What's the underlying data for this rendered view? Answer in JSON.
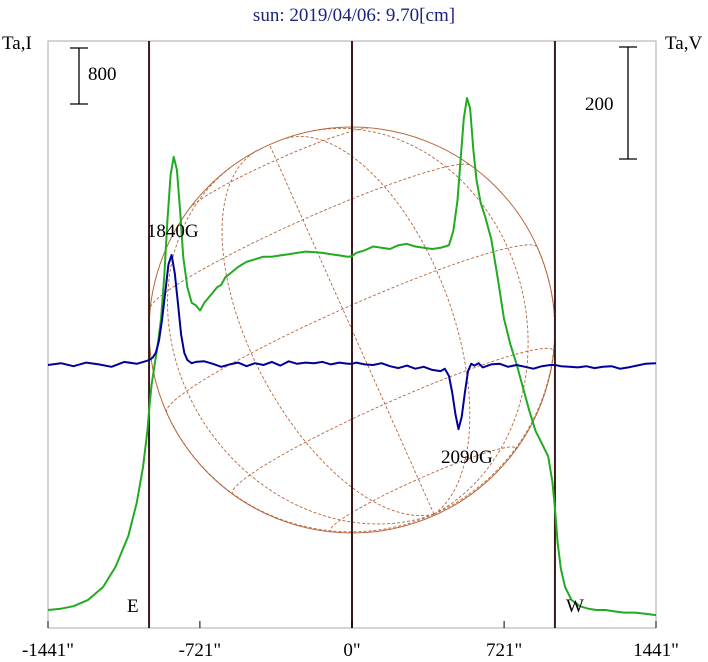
{
  "chart_data": {
    "type": "line",
    "title": "sun: 2019/04/06: 9.70[cm]",
    "left_axis_label": "Ta,I",
    "right_axis_label": "Ta,V",
    "scale_bar_left_label": "800",
    "scale_bar_right_label": "200",
    "east_label": "E",
    "west_label": "W",
    "x_ticks": [
      {
        "value": -1441,
        "label": "-1441\""
      },
      {
        "value": -721,
        "label": "-721\""
      },
      {
        "value": 0,
        "label": "0\""
      },
      {
        "value": 721,
        "label": "721\""
      },
      {
        "value": 1441,
        "label": "1441\""
      }
    ],
    "xlim": [
      -1441,
      1441
    ],
    "solar_limb_arcsec": 962,
    "annotations": [
      {
        "text": "1840G",
        "x": -850,
        "series": "V"
      },
      {
        "text": "2090G",
        "x": 530,
        "series": "V"
      }
    ],
    "colors": {
      "title": "#1a237e",
      "stokes_i": "#22aa22",
      "stokes_v": "#000099",
      "disk_grid": "#b5673b",
      "limb_lines": "#3a1a1a",
      "frame": "#aaaaaa"
    },
    "series": [
      {
        "key": "I",
        "x": [
          -1441,
          -1380,
          -1320,
          -1250,
          -1180,
          -1120,
          -1060,
          -1020,
          -990,
          -970,
          -962,
          -950,
          -935,
          -920,
          -905,
          -890,
          -875,
          -860,
          -845,
          -830,
          -815,
          -800,
          -780,
          -760,
          -740,
          -720,
          -700,
          -680,
          -660,
          -640,
          -620,
          -600,
          -570,
          -540,
          -500,
          -460,
          -420,
          -380,
          -340,
          -300,
          -260,
          -220,
          -180,
          -140,
          -100,
          -60,
          -20,
          0,
          20,
          60,
          100,
          140,
          180,
          220,
          260,
          300,
          340,
          380,
          420,
          440,
          460,
          480,
          500,
          515,
          530,
          545,
          560,
          575,
          590,
          610,
          630,
          660,
          690,
          720,
          750,
          780,
          810,
          840,
          870,
          900,
          930,
          950,
          962,
          975,
          990,
          1010,
          1040,
          1080,
          1120,
          1160,
          1200,
          1240,
          1290,
          1340,
          1390,
          1441
        ],
        "y": [
          0,
          5,
          15,
          40,
          90,
          170,
          290,
          420,
          560,
          700,
          780,
          880,
          960,
          1040,
          1140,
          1300,
          1520,
          1700,
          1770,
          1720,
          1560,
          1380,
          1260,
          1200,
          1190,
          1170,
          1200,
          1220,
          1240,
          1260,
          1270,
          1300,
          1320,
          1340,
          1360,
          1370,
          1380,
          1380,
          1385,
          1390,
          1395,
          1400,
          1398,
          1395,
          1390,
          1385,
          1380,
          1382,
          1395,
          1405,
          1420,
          1415,
          1410,
          1425,
          1430,
          1420,
          1415,
          1410,
          1415,
          1420,
          1425,
          1480,
          1600,
          1760,
          1920,
          2000,
          1960,
          1800,
          1680,
          1590,
          1540,
          1450,
          1300,
          1140,
          1040,
          960,
          870,
          780,
          700,
          650,
          600,
          500,
          400,
          260,
          160,
          90,
          40,
          15,
          5,
          0,
          0,
          -5,
          -10,
          -10,
          -15,
          -20
        ]
      },
      {
        "key": "V",
        "x": [
          -1441,
          -1380,
          -1320,
          -1260,
          -1200,
          -1140,
          -1080,
          -1020,
          -980,
          -962,
          -945,
          -930,
          -915,
          -900,
          -885,
          -870,
          -855,
          -840,
          -825,
          -810,
          -795,
          -780,
          -760,
          -740,
          -700,
          -660,
          -620,
          -580,
          -540,
          -500,
          -460,
          -420,
          -380,
          -340,
          -300,
          -260,
          -220,
          -180,
          -140,
          -100,
          -60,
          -20,
          0,
          20,
          60,
          100,
          140,
          180,
          220,
          260,
          300,
          340,
          380,
          420,
          440,
          460,
          475,
          490,
          505,
          520,
          535,
          550,
          565,
          580,
          600,
          620,
          660,
          700,
          740,
          780,
          820,
          860,
          900,
          940,
          962,
          990,
          1030,
          1070,
          1110,
          1150,
          1190,
          1230,
          1270,
          1310,
          1350,
          1390,
          1441
        ],
        "y": [
          0,
          3,
          -2,
          4,
          1,
          -3,
          5,
          2,
          6,
          8,
          12,
          20,
          40,
          75,
          120,
          165,
          180,
          150,
          100,
          50,
          20,
          8,
          3,
          5,
          6,
          2,
          -3,
          1,
          4,
          -2,
          3,
          0,
          5,
          -1,
          6,
          2,
          4,
          3,
          5,
          1,
          4,
          2,
          2,
          4,
          1,
          0,
          3,
          -2,
          -5,
          -1,
          -6,
          -3,
          -8,
          -10,
          -6,
          -18,
          -45,
          -80,
          -105,
          -85,
          -45,
          -10,
          2,
          -1,
          3,
          -4,
          1,
          2,
          -3,
          0,
          -3,
          -6,
          -2,
          0,
          0,
          -2,
          -3,
          -4,
          -2,
          -5,
          -3,
          -2,
          -6,
          -4,
          -1,
          2,
          3
        ]
      }
    ]
  }
}
